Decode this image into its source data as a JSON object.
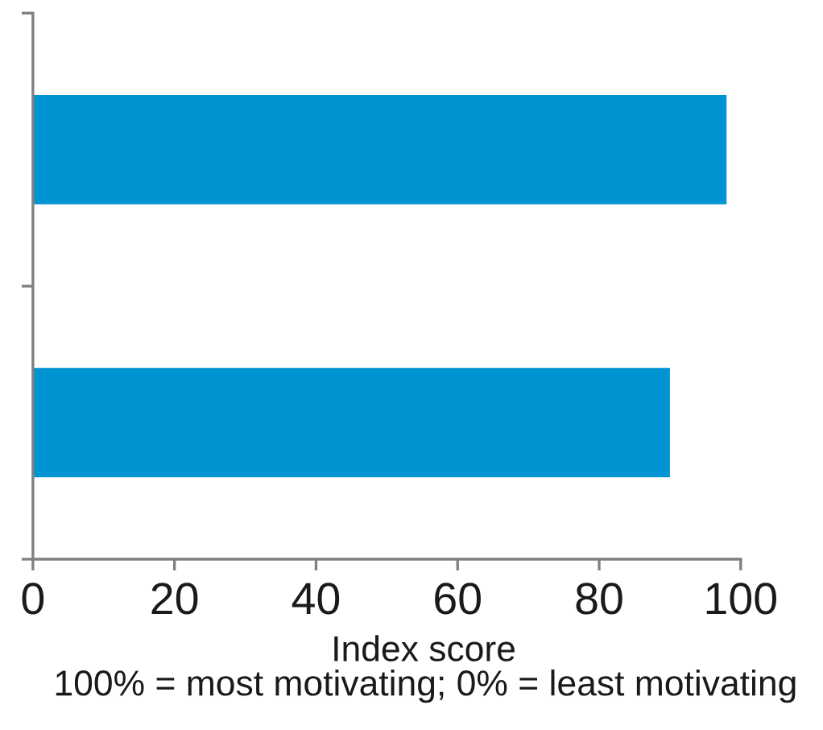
{
  "chart_data": {
    "type": "bar",
    "orientation": "horizontal",
    "categories": [
      null,
      null
    ],
    "values": [
      98,
      90
    ],
    "color": "#0094d2",
    "xlim": [
      0,
      100
    ],
    "xticks": [
      0,
      20,
      40,
      60,
      80,
      100
    ],
    "grid": false,
    "xlabel": "Index score",
    "annotations": [
      "100% = most motivating; 0% = least motivating"
    ]
  }
}
